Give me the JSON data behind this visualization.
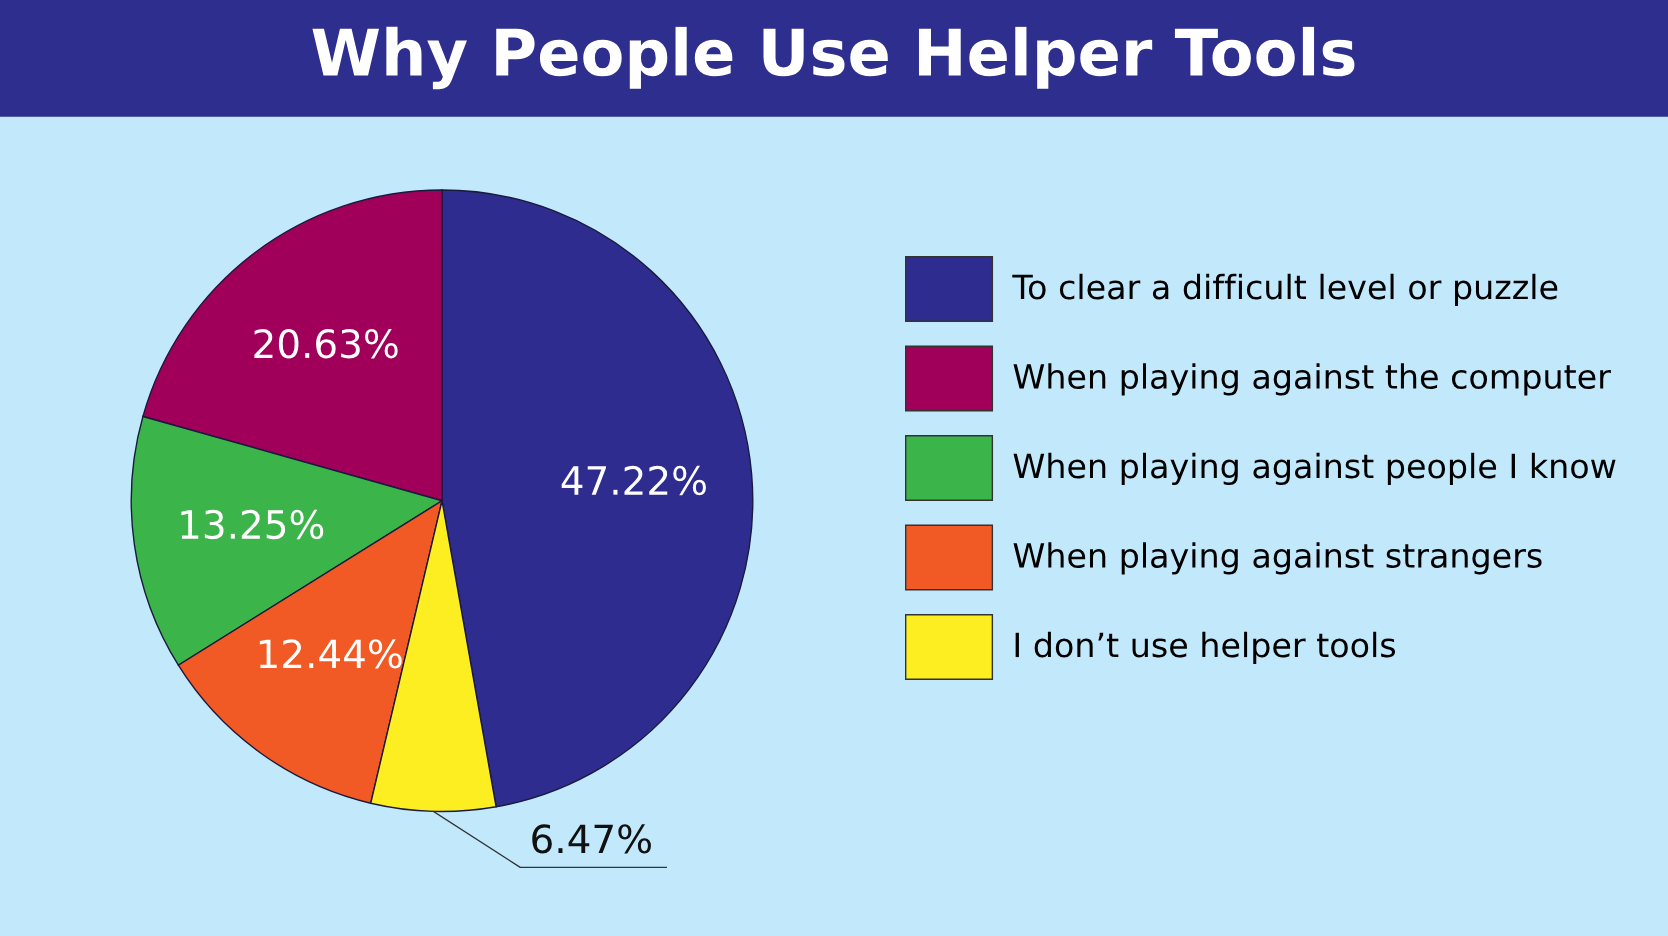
{
  "chart_data": {
    "type": "pie",
    "title": "Why People Use Helper Tools",
    "categories": [
      "To clear a difficult level or puzzle",
      "When playing against the computer",
      "When playing against people I know",
      "When playing against strangers",
      "I don’t use helper tools"
    ],
    "values": [
      47.22,
      20.63,
      13.25,
      12.44,
      6.47
    ],
    "value_labels": [
      "47.22%",
      "20.63%",
      "13.25%",
      "12.44%",
      "6.47%"
    ],
    "colors": [
      "#2e2d8f",
      "#a0005a",
      "#3bb44a",
      "#f15a24",
      "#fcee21"
    ],
    "legend": "right"
  }
}
